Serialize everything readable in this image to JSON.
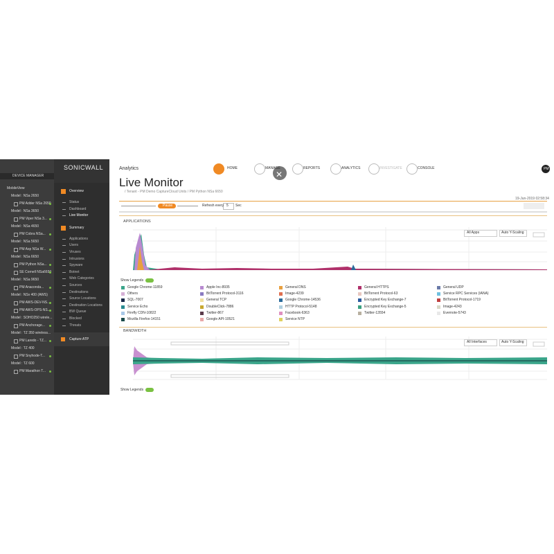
{
  "sidebar": {
    "header": "DEVICE MANAGER",
    "root": "MobileView",
    "groups": [
      {
        "model": "Model : NSa 2650",
        "units": [
          "PM Adder NSa 2650"
        ]
      },
      {
        "model": "Model : NSa 3650",
        "units": [
          "PM Viper NSa 3..."
        ]
      },
      {
        "model": "Model : NSa 4650",
        "units": [
          "PM Cobra NSa..."
        ]
      },
      {
        "model": "Model : NSa 5650",
        "units": [
          "PM Asp NSa W..."
        ]
      },
      {
        "model": "Model : NSa 6650",
        "units": [
          "PM Python NSa...",
          "SE Cornell NSa6650"
        ]
      },
      {
        "model": "Model : NSa 9650",
        "units": [
          "PM Anaconda..."
        ]
      },
      {
        "model": "Model : NSv 400 (AWS)",
        "units": [
          "PM AWS-DEV-NS...",
          "PM AWS-OPS-NS..."
        ]
      },
      {
        "model": "Model : SOHO250 wirele...",
        "units": [
          "PM Anchorage..."
        ]
      },
      {
        "model": "Model : TZ 350 wireless...",
        "units": [
          "PM Laredo - TZ..."
        ]
      },
      {
        "model": "Model : TZ 400",
        "units": [
          "PM Snyhode-T..."
        ]
      },
      {
        "model": "Model : TZ 600",
        "units": [
          "PM Marathon T..."
        ]
      }
    ]
  },
  "nav": {
    "logo": "SONICWALL",
    "sections": [
      {
        "title": "Overview",
        "items": [
          "Status",
          "Dashboard",
          "Live Monitor"
        ]
      },
      {
        "title": "Summary",
        "items": [
          "Applications",
          "Users",
          "Viruses",
          "Intrusions",
          "Spyware",
          "Botnet",
          "Web Categories",
          "Sources",
          "Destinations",
          "Source Locations",
          "Destination Locations",
          "BW Queue",
          "Blocked",
          "Threats"
        ]
      }
    ],
    "capture": "Capture ATP"
  },
  "topbar": {
    "app": "Analytics",
    "tabs": [
      "HOME",
      "MANAGE",
      "REPORTS",
      "ANALYTICS",
      "INVESTIGATE",
      "CONSOLE"
    ],
    "user": "PM"
  },
  "page": {
    "title": "Live Monitor",
    "breadcrumb": "/ Tenant - PM Demo CaptureCloud Units / PM Python NSa 6650",
    "timestamp": "19-Jun-2019 02:58:34",
    "pause": "Pause",
    "refresh_label": "Refresh every",
    "refresh_value": "5",
    "refresh_unit": "Sec"
  },
  "applications": {
    "title": "APPLICATIONS",
    "filter": "All Apps",
    "scaling": "Auto Y-Scaling",
    "show_legends": "Show Legends",
    "legend": [
      {
        "name": "Google Chrome-11859",
        "color": "#3aa58a"
      },
      {
        "name": "Apple Inc-8935",
        "color": "#b88ad0"
      },
      {
        "name": "General DNS",
        "color": "#e8a040"
      },
      {
        "name": "General HTTPS",
        "color": "#b0306a"
      },
      {
        "name": "General UDP",
        "color": "#6a7aa8"
      },
      {
        "name": "Others",
        "color": "#d6b0d6"
      },
      {
        "name": "BitTorrent Protocol-3116",
        "color": "#8a7ac0"
      },
      {
        "name": "Image-4239",
        "color": "#e07050"
      },
      {
        "name": "BitTorrent Protocol-63",
        "color": "#e8c8c0"
      },
      {
        "name": "Service RPC Services (IANA)",
        "color": "#70c0e0"
      },
      {
        "name": "SQL-7007",
        "color": "#1a2a4a"
      },
      {
        "name": "General TCP",
        "color": "#f0e0a0"
      },
      {
        "name": "Google Chrome-14536",
        "color": "#2a6a9a"
      },
      {
        "name": "Encrypted Key Exchange-7",
        "color": "#2a5aa0"
      },
      {
        "name": "BitTorrent Protocol-1719",
        "color": "#c04040"
      },
      {
        "name": "Service Echo",
        "color": "#2a8a90"
      },
      {
        "name": "DoubleClick-7886",
        "color": "#c8a830"
      },
      {
        "name": "HTTP Protocol-5148",
        "color": "#b0d0e0"
      },
      {
        "name": "Encrypted Key Exchange-5",
        "color": "#3aa080"
      },
      {
        "name": "Image-4243",
        "color": "#d8d8c8"
      },
      {
        "name": "Firefly CDN-10822",
        "color": "#a8c8e8"
      },
      {
        "name": "Twitter-867",
        "color": "#5a3a4a"
      },
      {
        "name": "Facebook-6363",
        "color": "#e090c0"
      },
      {
        "name": "Twitter-13554",
        "color": "#b8b0a0"
      },
      {
        "name": "Evernote-5743",
        "color": "#e8e8e8"
      },
      {
        "name": "Mozilla Firefox-14151",
        "color": "#1a4a4a"
      },
      {
        "name": "Google API-10521",
        "color": "#e8a8a8"
      },
      {
        "name": "Service NTP",
        "color": "#e0d060"
      }
    ]
  },
  "bandwidth": {
    "title": "BANDWIDTH",
    "filter": "All Interfaces",
    "scaling": "Auto Y-Scaling",
    "show_legends": "Show Legends"
  }
}
